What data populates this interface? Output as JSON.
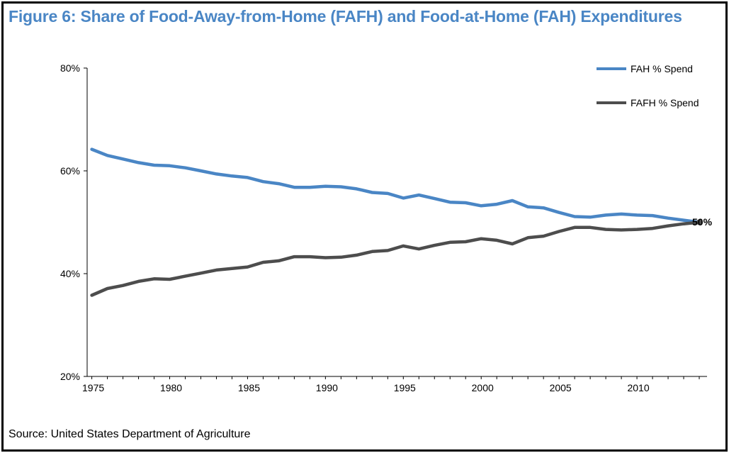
{
  "title": "Figure 6: Share of Food-Away-from-Home (FAFH) and Food-at-Home (FAH) Expenditures",
  "source": "Source: United States Department of Agriculture",
  "colors": {
    "title": "#4a86c5",
    "fah": "#4a86c5",
    "fafh": "#4d4d4d",
    "axis": "#000000"
  },
  "chart_data": {
    "type": "line",
    "title": "Figure 6: Share of Food-Away-from-Home (FAFH) and Food-at-Home (FAH) Expenditures",
    "xlabel": "",
    "ylabel": "",
    "xlim": [
      1975,
      2014
    ],
    "ylim": [
      20,
      80
    ],
    "grid": false,
    "legend_position": "top-right",
    "x_ticks": [
      1975,
      1980,
      1985,
      1990,
      1995,
      2000,
      2005,
      2010
    ],
    "x_tick_labels": [
      "1975",
      "1980",
      "1985",
      "1990",
      "1995",
      "2000",
      "2005",
      "2010"
    ],
    "y_ticks": [
      20,
      40,
      60,
      80
    ],
    "y_tick_labels": [
      "20%",
      "40%",
      "60%",
      "80%"
    ],
    "x": [
      1975,
      1976,
      1977,
      1978,
      1979,
      1980,
      1981,
      1982,
      1983,
      1984,
      1985,
      1986,
      1987,
      1988,
      1989,
      1990,
      1991,
      1992,
      1993,
      1994,
      1995,
      1996,
      1997,
      1998,
      1999,
      2000,
      2001,
      2002,
      2003,
      2004,
      2005,
      2006,
      2007,
      2008,
      2009,
      2010,
      2011,
      2012,
      2013,
      2014
    ],
    "series": [
      {
        "name": "FAH % Spend",
        "values": [
          64.2,
          63.0,
          62.3,
          61.6,
          61.1,
          61.0,
          60.6,
          60.0,
          59.4,
          59.0,
          58.7,
          57.9,
          57.5,
          56.8,
          56.8,
          57.0,
          56.9,
          56.5,
          55.8,
          55.6,
          54.7,
          55.3,
          54.6,
          53.9,
          53.8,
          53.2,
          53.5,
          54.2,
          53.0,
          52.8,
          51.9,
          51.1,
          51.0,
          51.4,
          51.6,
          51.4,
          51.3,
          50.8,
          50.4,
          50.0
        ]
      },
      {
        "name": "FAFH % Spend",
        "values": [
          35.8,
          37.1,
          37.7,
          38.5,
          39.0,
          38.9,
          39.5,
          40.1,
          40.7,
          41.0,
          41.3,
          42.2,
          42.5,
          43.3,
          43.3,
          43.1,
          43.2,
          43.6,
          44.3,
          44.5,
          45.4,
          44.8,
          45.5,
          46.1,
          46.2,
          46.8,
          46.5,
          45.8,
          47.0,
          47.3,
          48.2,
          49.0,
          49.0,
          48.6,
          48.5,
          48.6,
          48.8,
          49.3,
          49.7,
          50.0
        ]
      }
    ],
    "annotations": [
      {
        "text": "50%",
        "x": 2014,
        "y": 50
      }
    ]
  }
}
